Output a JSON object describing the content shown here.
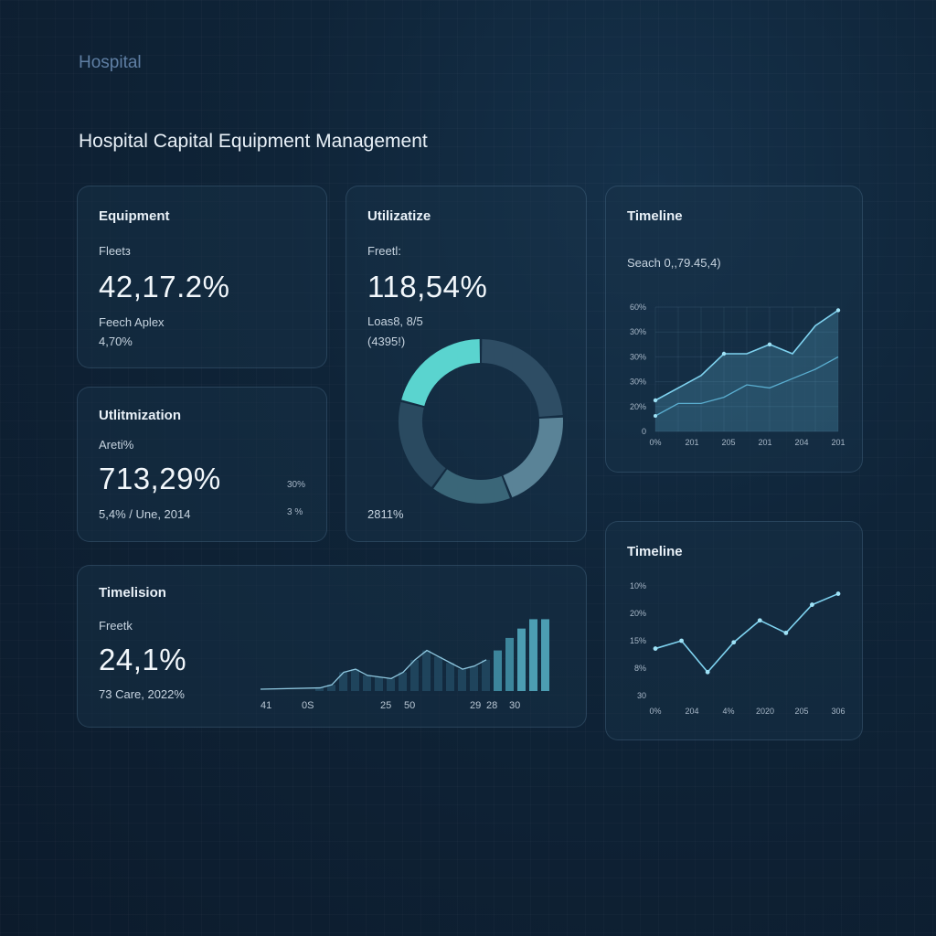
{
  "app": {
    "brand": "Hospital",
    "title": "Hospital Capital Equipment Management"
  },
  "cards": {
    "equipment": {
      "title": "Equipment",
      "label": "Fleetз",
      "value": "42,17.2%",
      "sub1": "Feech Aplex",
      "sub2": "4,70%"
    },
    "utilization": {
      "title": "Utilizatize",
      "label": "Freetl:",
      "value": "118,54%",
      "sub1": "Loas8, 8/5",
      "sub2": "(4395!)",
      "footer": "2811%"
    },
    "utilization2": {
      "title": "Utlitmization",
      "label": "Areti%",
      "value": "713,29%",
      "sub": "5,4% / Une, 2014",
      "right1": "30%",
      "right2": "3 %"
    },
    "timelision": {
      "title": "Timelision",
      "label": "Freetk",
      "value": "24,1%",
      "sub": "73 Care, 2022%",
      "xticks": [
        "41",
        "0S",
        "25",
        "50",
        "29",
        "28",
        "30"
      ]
    },
    "timeline1": {
      "title": "Timeline",
      "search": "Seach 0,,79.45,4)",
      "yticks": [
        "60%",
        "30%",
        "30%",
        "30%",
        "20%",
        "0"
      ],
      "xticks": [
        "0%",
        "201",
        "205",
        "201",
        "204",
        "201"
      ]
    },
    "timeline2": {
      "title": "Timeline",
      "yticks": [
        "10%",
        "20%",
        "15%",
        "8%",
        "30"
      ],
      "xticks": [
        "0%",
        "204",
        "4%",
        "2020",
        "205",
        "306"
      ]
    }
  },
  "chart_data": [
    {
      "type": "pie",
      "values": [
        24,
        20,
        16,
        19,
        21
      ],
      "colors": [
        "#2e4d64",
        "#5a8397",
        "#3a6678",
        "#2a4a60",
        "#5ad4cf"
      ]
    },
    {
      "type": "bar",
      "values": [
        2,
        4,
        12,
        14,
        10,
        9,
        8,
        12,
        20,
        26,
        22,
        18,
        14,
        16,
        20,
        26,
        34,
        40,
        46,
        46
      ]
    },
    {
      "type": "area",
      "series": [
        {
          "values": [
            20,
            28,
            36,
            50,
            50,
            56,
            50,
            68,
            78
          ]
        },
        {
          "values": [
            10,
            18,
            18,
            22,
            30,
            28,
            34,
            40,
            48
          ]
        }
      ]
    },
    {
      "type": "line",
      "values": [
        30,
        35,
        15,
        34,
        48,
        40,
        58,
        65
      ]
    }
  ],
  "colors": {
    "accent": "#5ad4cf",
    "line": "#7fd3f0",
    "card_border": "#3c5a72"
  }
}
